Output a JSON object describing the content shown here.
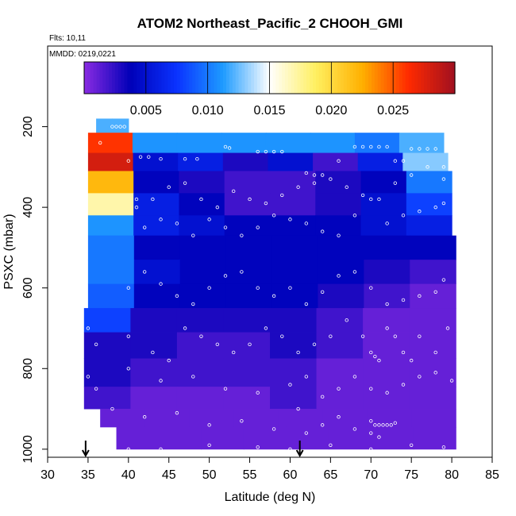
{
  "chart_data": {
    "type": "heatmap",
    "title": "ATOM2 Northeast_Pacific_2 CHOOH_GMI",
    "annotations": [
      "Flts: 10,11",
      "MMDD: 0219,0221"
    ],
    "xlabel": "Latitude (deg N)",
    "ylabel": "PSXC (mbar)",
    "xlim": [
      30,
      85
    ],
    "ylim": [
      1020,
      0
    ],
    "x_ticks": [
      "30",
      "35",
      "40",
      "45",
      "50",
      "55",
      "60",
      "65",
      "70",
      "75",
      "80",
      "85"
    ],
    "y_ticks": [
      "200",
      "400",
      "600",
      "800",
      "1000"
    ],
    "colorbar": {
      "range": [
        0,
        0.03
      ],
      "ticks": [
        "0.005",
        "0.010",
        "0.015",
        "0.020",
        "0.025"
      ],
      "colors": [
        "#8a2be2",
        "#0000b8",
        "#0a33ff",
        "#1e9bff",
        "#ffffff",
        "#ffef60",
        "#ffb000",
        "#ff2a00",
        "#a01020"
      ]
    },
    "arrows_at_latitude": [
      34.7,
      61.2
    ],
    "rows": [
      {
        "p": [
          180,
          215
        ],
        "x": [
          36,
          40
        ],
        "v": [
          0.012,
          0.012
        ]
      },
      {
        "p": [
          215,
          265
        ],
        "x": [
          35,
          79
        ],
        "v": [
          0.026,
          0.011,
          0.011,
          0.011,
          0.011,
          0.011,
          0.01,
          0.012
        ]
      },
      {
        "p": [
          265,
          310
        ],
        "x": [
          35,
          79.5
        ],
        "v": [
          0.028,
          0.005,
          0.006,
          0.003,
          0.005,
          0.002,
          0.006,
          0.013
        ]
      },
      {
        "p": [
          310,
          365
        ],
        "x": [
          35,
          80
        ],
        "v": [
          0.022,
          0.004,
          0.003,
          0.002,
          0.002,
          0.003,
          0.004,
          0.01
        ]
      },
      {
        "p": [
          365,
          420
        ],
        "x": [
          35,
          80
        ],
        "v": [
          0.017,
          0.006,
          0.004,
          0.002,
          0.002,
          0.003,
          0.005,
          0.008
        ]
      },
      {
        "p": [
          420,
          470
        ],
        "x": [
          35,
          80
        ],
        "v": [
          0.011,
          0.006,
          0.005,
          0.004,
          0.004,
          0.004,
          0.005,
          0.006
        ]
      },
      {
        "p": [
          470,
          530
        ],
        "x": [
          35,
          80.5
        ],
        "v": [
          0.01,
          0.004,
          0.004,
          0.004,
          0.004,
          0.004,
          0.004,
          0.004
        ]
      },
      {
        "p": [
          530,
          590
        ],
        "x": [
          35,
          80.5
        ],
        "v": [
          0.01,
          0.005,
          0.004,
          0.004,
          0.004,
          0.004,
          0.003,
          0.002
        ]
      },
      {
        "p": [
          590,
          650
        ],
        "x": [
          35,
          80.5
        ],
        "v": [
          0.009,
          0.004,
          0.004,
          0.004,
          0.004,
          0.003,
          0.002,
          0.001
        ]
      },
      {
        "p": [
          650,
          710
        ],
        "x": [
          34.5,
          80.5
        ],
        "v": [
          0.008,
          0.003,
          0.003,
          0.003,
          0.003,
          0.002,
          0.001,
          0.001
        ]
      },
      {
        "p": [
          710,
          775
        ],
        "x": [
          34.5,
          80.5
        ],
        "v": [
          0.003,
          0.003,
          0.002,
          0.002,
          0.003,
          0.002,
          0.001,
          0.001
        ]
      },
      {
        "p": [
          775,
          845
        ],
        "x": [
          34.5,
          80.5
        ],
        "v": [
          0.003,
          0.002,
          0.002,
          0.002,
          0.002,
          0.001,
          0.001,
          0.001
        ]
      },
      {
        "p": [
          845,
          900
        ],
        "x": [
          34.5,
          80.5
        ],
        "v": [
          0.002,
          0.001,
          0.001,
          0.001,
          0.002,
          0.001,
          0.001,
          0.001
        ]
      },
      {
        "p": [
          900,
          945
        ],
        "x": [
          36.5,
          80.5
        ],
        "v": [
          0.001,
          0.001,
          0.001,
          0.001,
          0.001,
          0.001,
          0.001,
          0.001
        ]
      },
      {
        "p": [
          945,
          1000
        ],
        "x": [
          38.5,
          80.5
        ],
        "v": [
          0.001,
          0.001,
          0.001,
          0.001,
          0.001,
          0.001,
          0.001,
          0.001
        ]
      }
    ],
    "points": [
      [
        38,
        200
      ],
      [
        38.5,
        200
      ],
      [
        39,
        200
      ],
      [
        39.5,
        200
      ],
      [
        36.5,
        240
      ],
      [
        41.5,
        275
      ],
      [
        42.5,
        275
      ],
      [
        44,
        280
      ],
      [
        47,
        280
      ],
      [
        48.5,
        280
      ],
      [
        52,
        250
      ],
      [
        52.5,
        253
      ],
      [
        56,
        262
      ],
      [
        57,
        262
      ],
      [
        58,
        262
      ],
      [
        59,
        262
      ],
      [
        62,
        315
      ],
      [
        63,
        320
      ],
      [
        64,
        320
      ],
      [
        66,
        285
      ],
      [
        68,
        250
      ],
      [
        69,
        250
      ],
      [
        70,
        250
      ],
      [
        71,
        250
      ],
      [
        72,
        250
      ],
      [
        73,
        285
      ],
      [
        74,
        285
      ],
      [
        75,
        255
      ],
      [
        76,
        255
      ],
      [
        77,
        255
      ],
      [
        78,
        255
      ],
      [
        79,
        300
      ],
      [
        40,
        285
      ],
      [
        41,
        400
      ],
      [
        42,
        450
      ],
      [
        44,
        430
      ],
      [
        46,
        440
      ],
      [
        48,
        470
      ],
      [
        50,
        430
      ],
      [
        52,
        450
      ],
      [
        54,
        470
      ],
      [
        56,
        450
      ],
      [
        58,
        420
      ],
      [
        60,
        430
      ],
      [
        62,
        440
      ],
      [
        64,
        460
      ],
      [
        66,
        470
      ],
      [
        68,
        420
      ],
      [
        70,
        380
      ],
      [
        72,
        440
      ],
      [
        74,
        420
      ],
      [
        76,
        410
      ],
      [
        78,
        400
      ],
      [
        79,
        390
      ],
      [
        41,
        380
      ],
      [
        43,
        380
      ],
      [
        45,
        350
      ],
      [
        47,
        340
      ],
      [
        49,
        380
      ],
      [
        51,
        400
      ],
      [
        53,
        360
      ],
      [
        55,
        380
      ],
      [
        57,
        390
      ],
      [
        59,
        370
      ],
      [
        61,
        350
      ],
      [
        63,
        340
      ],
      [
        65,
        330
      ],
      [
        67,
        350
      ],
      [
        69,
        370
      ],
      [
        71,
        380
      ],
      [
        73,
        340
      ],
      [
        75,
        320
      ],
      [
        77,
        300
      ],
      [
        79,
        330
      ],
      [
        40,
        600
      ],
      [
        42,
        560
      ],
      [
        44,
        590
      ],
      [
        46,
        620
      ],
      [
        48,
        640
      ],
      [
        50,
        600
      ],
      [
        52,
        570
      ],
      [
        54,
        560
      ],
      [
        56,
        600
      ],
      [
        58,
        620
      ],
      [
        60,
        600
      ],
      [
        62,
        640
      ],
      [
        64,
        610
      ],
      [
        66,
        570
      ],
      [
        68,
        560
      ],
      [
        70,
        600
      ],
      [
        72,
        640
      ],
      [
        74,
        630
      ],
      [
        76,
        620
      ],
      [
        78,
        610
      ],
      [
        79,
        580
      ],
      [
        35,
        700
      ],
      [
        36,
        740
      ],
      [
        40,
        720
      ],
      [
        43,
        760
      ],
      [
        45,
        780
      ],
      [
        47,
        700
      ],
      [
        49,
        720
      ],
      [
        51,
        740
      ],
      [
        53,
        760
      ],
      [
        55,
        740
      ],
      [
        57,
        700
      ],
      [
        59,
        720
      ],
      [
        61,
        760
      ],
      [
        63,
        740
      ],
      [
        65,
        720
      ],
      [
        67,
        680
      ],
      [
        69,
        720
      ],
      [
        70,
        760
      ],
      [
        70.5,
        770
      ],
      [
        71,
        780
      ],
      [
        72,
        700
      ],
      [
        73,
        720
      ],
      [
        74,
        760
      ],
      [
        75,
        780
      ],
      [
        76,
        720
      ],
      [
        78,
        760
      ],
      [
        79.5,
        700
      ],
      [
        35,
        820
      ],
      [
        36,
        850
      ],
      [
        40,
        800
      ],
      [
        44,
        830
      ],
      [
        48,
        820
      ],
      [
        52,
        850
      ],
      [
        56,
        860
      ],
      [
        60,
        840
      ],
      [
        62,
        820
      ],
      [
        64,
        870
      ],
      [
        66,
        850
      ],
      [
        68,
        820
      ],
      [
        70,
        850
      ],
      [
        72,
        860
      ],
      [
        74,
        840
      ],
      [
        76,
        820
      ],
      [
        78,
        810
      ],
      [
        80,
        830
      ],
      [
        38,
        900
      ],
      [
        42,
        920
      ],
      [
        46,
        910
      ],
      [
        50,
        940
      ],
      [
        54,
        930
      ],
      [
        58,
        950
      ],
      [
        61,
        900
      ],
      [
        62,
        960
      ],
      [
        64,
        940
      ],
      [
        66,
        920
      ],
      [
        68,
        950
      ],
      [
        70,
        930
      ],
      [
        70.5,
        940
      ],
      [
        71,
        940
      ],
      [
        71.5,
        940
      ],
      [
        72,
        940
      ],
      [
        72.5,
        940
      ],
      [
        73,
        935
      ],
      [
        70,
        960
      ],
      [
        71,
        970
      ],
      [
        40,
        1000
      ],
      [
        44,
        1000
      ],
      [
        50,
        990
      ],
      [
        56,
        995
      ],
      [
        60,
        1000
      ],
      [
        65,
        990
      ],
      [
        70,
        1000
      ],
      [
        75,
        990
      ],
      [
        79,
        995
      ]
    ]
  }
}
